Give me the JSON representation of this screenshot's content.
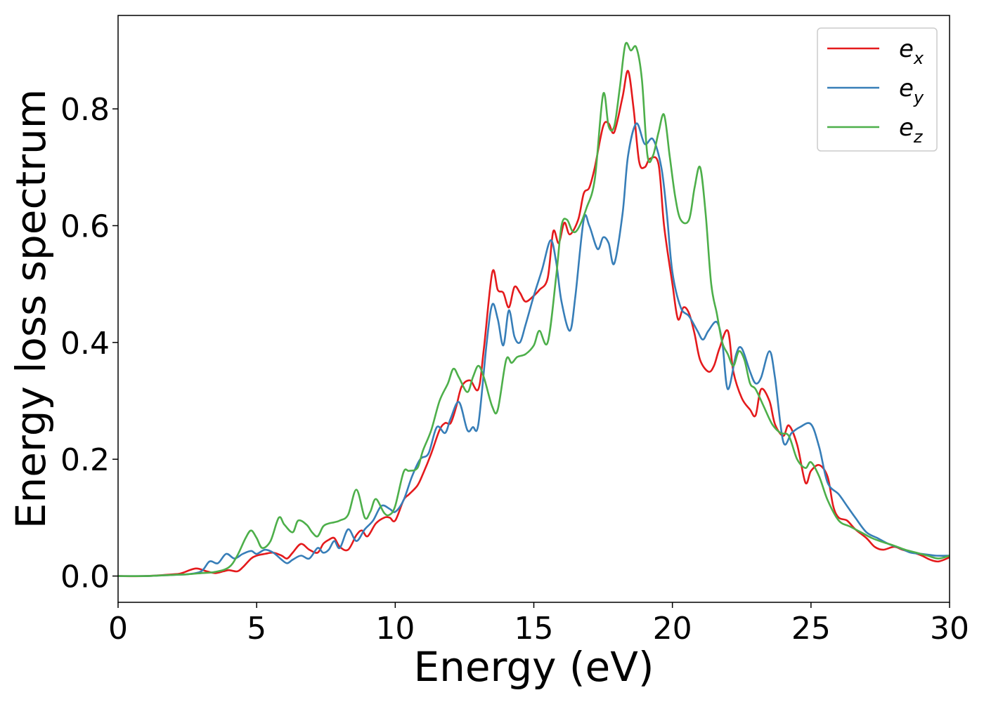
{
  "chart_data": {
    "type": "line",
    "title": "",
    "xlabel": "Energy (eV)",
    "ylabel": "Energy loss spectrum",
    "xlim": [
      0,
      30
    ],
    "ylim": [
      -0.045,
      0.96
    ],
    "xticks": [
      0,
      5,
      10,
      15,
      20,
      25,
      30
    ],
    "xtick_labels": [
      "0",
      "5",
      "10",
      "15",
      "20",
      "25",
      "30"
    ],
    "yticks": [
      0.0,
      0.2,
      0.4,
      0.6,
      0.8
    ],
    "ytick_labels": [
      "0.0",
      "0.2",
      "0.4",
      "0.6",
      "0.8"
    ],
    "grid": false,
    "legend_position": "top-right",
    "series": [
      {
        "name": "e",
        "subscript": "x",
        "color": "#e41a1c",
        "x": [
          0,
          1,
          2,
          2.3,
          2.8,
          3.2,
          3.5,
          3.8,
          4.0,
          4.3,
          4.5,
          4.8,
          5.0,
          5.3,
          5.6,
          5.9,
          6.1,
          6.3,
          6.6,
          6.9,
          7.2,
          7.4,
          7.6,
          7.8,
          8.0,
          8.3,
          8.6,
          8.8,
          9.0,
          9.3,
          9.6,
          9.8,
          10.0,
          10.3,
          10.5,
          10.8,
          11.0,
          11.3,
          11.6,
          11.8,
          12.0,
          12.2,
          12.4,
          12.7,
          13.0,
          13.2,
          13.5,
          13.7,
          13.9,
          14.1,
          14.3,
          14.5,
          14.7,
          15.0,
          15.2,
          15.5,
          15.7,
          15.9,
          16.1,
          16.3,
          16.6,
          16.8,
          17.0,
          17.2,
          17.5,
          17.7,
          17.9,
          18.2,
          18.4,
          18.6,
          18.8,
          19.0,
          19.2,
          19.5,
          19.7,
          20.0,
          20.2,
          20.4,
          20.6,
          20.8,
          21.0,
          21.3,
          21.5,
          21.7,
          22.0,
          22.2,
          22.5,
          22.8,
          23.0,
          23.2,
          23.5,
          23.7,
          24.0,
          24.2,
          24.5,
          24.8,
          25.0,
          25.3,
          25.6,
          25.8,
          26.0,
          26.3,
          26.6,
          27.0,
          27.3,
          27.6,
          28.0,
          28.3,
          28.7,
          29.0,
          29.3,
          29.6,
          30.0
        ],
        "y": [
          0,
          0,
          0.003,
          0.005,
          0.013,
          0.008,
          0.005,
          0.008,
          0.01,
          0.008,
          0.015,
          0.03,
          0.035,
          0.038,
          0.04,
          0.035,
          0.03,
          0.04,
          0.055,
          0.045,
          0.04,
          0.055,
          0.062,
          0.065,
          0.05,
          0.045,
          0.07,
          0.078,
          0.068,
          0.09,
          0.1,
          0.1,
          0.095,
          0.13,
          0.14,
          0.155,
          0.175,
          0.21,
          0.25,
          0.262,
          0.262,
          0.29,
          0.325,
          0.335,
          0.32,
          0.39,
          0.52,
          0.49,
          0.485,
          0.46,
          0.495,
          0.485,
          0.47,
          0.48,
          0.49,
          0.51,
          0.59,
          0.57,
          0.605,
          0.585,
          0.61,
          0.655,
          0.665,
          0.7,
          0.77,
          0.775,
          0.76,
          0.82,
          0.865,
          0.8,
          0.71,
          0.7,
          0.715,
          0.705,
          0.6,
          0.5,
          0.44,
          0.46,
          0.45,
          0.415,
          0.37,
          0.35,
          0.36,
          0.39,
          0.42,
          0.35,
          0.305,
          0.285,
          0.275,
          0.32,
          0.3,
          0.26,
          0.24,
          0.258,
          0.225,
          0.16,
          0.18,
          0.19,
          0.17,
          0.12,
          0.1,
          0.095,
          0.08,
          0.065,
          0.05,
          0.045,
          0.05,
          0.045,
          0.04,
          0.035,
          0.028,
          0.025,
          0.032
        ]
      },
      {
        "name": "e",
        "subscript": "y",
        "color": "#377eb8",
        "x": [
          0,
          1,
          2,
          2.5,
          3.0,
          3.3,
          3.6,
          3.9,
          4.2,
          4.5,
          4.8,
          5.0,
          5.3,
          5.6,
          5.9,
          6.1,
          6.3,
          6.6,
          6.9,
          7.2,
          7.4,
          7.6,
          7.8,
          8.0,
          8.3,
          8.6,
          8.9,
          9.2,
          9.5,
          9.8,
          10.0,
          10.3,
          10.6,
          10.9,
          11.2,
          11.5,
          11.8,
          12.0,
          12.3,
          12.6,
          12.8,
          13.0,
          13.3,
          13.5,
          13.7,
          13.9,
          14.1,
          14.3,
          14.5,
          14.7,
          15.0,
          15.3,
          15.6,
          15.8,
          16.0,
          16.3,
          16.5,
          16.8,
          17.0,
          17.3,
          17.5,
          17.7,
          17.9,
          18.2,
          18.4,
          18.7,
          19.0,
          19.3,
          19.6,
          19.8,
          20.0,
          20.3,
          20.6,
          20.9,
          21.1,
          21.3,
          21.6,
          21.8,
          22.0,
          22.3,
          22.5,
          22.8,
          23.0,
          23.2,
          23.5,
          23.7,
          24.0,
          24.3,
          24.6,
          25.0,
          25.3,
          25.6,
          26.0,
          26.3,
          26.6,
          27.0,
          27.4,
          27.8,
          28.2,
          28.6,
          29.0,
          29.5,
          30.0
        ],
        "y": [
          0,
          0,
          0.002,
          0.003,
          0.008,
          0.025,
          0.022,
          0.038,
          0.03,
          0.038,
          0.043,
          0.038,
          0.045,
          0.04,
          0.028,
          0.022,
          0.028,
          0.035,
          0.03,
          0.048,
          0.04,
          0.045,
          0.06,
          0.048,
          0.08,
          0.06,
          0.08,
          0.095,
          0.12,
          0.115,
          0.11,
          0.13,
          0.17,
          0.2,
          0.21,
          0.255,
          0.245,
          0.27,
          0.298,
          0.25,
          0.255,
          0.26,
          0.4,
          0.465,
          0.44,
          0.395,
          0.455,
          0.41,
          0.4,
          0.43,
          0.48,
          0.525,
          0.575,
          0.54,
          0.47,
          0.42,
          0.48,
          0.61,
          0.6,
          0.56,
          0.58,
          0.57,
          0.535,
          0.62,
          0.72,
          0.775,
          0.74,
          0.748,
          0.7,
          0.62,
          0.52,
          0.46,
          0.445,
          0.42,
          0.405,
          0.42,
          0.435,
          0.4,
          0.32,
          0.38,
          0.39,
          0.35,
          0.33,
          0.34,
          0.385,
          0.34,
          0.23,
          0.245,
          0.255,
          0.26,
          0.22,
          0.16,
          0.14,
          0.12,
          0.1,
          0.075,
          0.065,
          0.055,
          0.048,
          0.04,
          0.038,
          0.035,
          0.035
        ]
      },
      {
        "name": "e",
        "subscript": "z",
        "color": "#4daf4a",
        "x": [
          0,
          1,
          2,
          2.5,
          3.0,
          3.5,
          4.0,
          4.3,
          4.6,
          4.8,
          5.0,
          5.2,
          5.5,
          5.8,
          6.0,
          6.3,
          6.5,
          6.8,
          7.0,
          7.2,
          7.4,
          7.6,
          7.8,
          8.0,
          8.3,
          8.6,
          8.9,
          9.1,
          9.3,
          9.6,
          9.8,
          10.0,
          10.3,
          10.5,
          10.8,
          11.0,
          11.3,
          11.6,
          11.9,
          12.1,
          12.3,
          12.6,
          12.8,
          13.0,
          13.2,
          13.5,
          13.7,
          14.0,
          14.2,
          14.4,
          14.7,
          15.0,
          15.2,
          15.5,
          15.8,
          16.0,
          16.2,
          16.4,
          16.6,
          16.9,
          17.2,
          17.5,
          17.7,
          17.9,
          18.1,
          18.3,
          18.5,
          18.7,
          18.9,
          19.1,
          19.3,
          19.5,
          19.7,
          19.9,
          20.1,
          20.3,
          20.6,
          20.8,
          21.0,
          21.2,
          21.4,
          21.6,
          21.8,
          22.0,
          22.2,
          22.4,
          22.6,
          22.8,
          23.0,
          23.3,
          23.6,
          23.9,
          24.2,
          24.5,
          24.8,
          25.0,
          25.3,
          25.6,
          26.0,
          26.4,
          26.8,
          27.2,
          27.6,
          28.0,
          28.4,
          28.8,
          29.2,
          29.6,
          30.0
        ],
        "y": [
          0,
          0,
          0.002,
          0.003,
          0.005,
          0.007,
          0.015,
          0.035,
          0.065,
          0.078,
          0.065,
          0.048,
          0.06,
          0.1,
          0.088,
          0.075,
          0.095,
          0.088,
          0.075,
          0.068,
          0.085,
          0.09,
          0.092,
          0.095,
          0.105,
          0.148,
          0.1,
          0.11,
          0.132,
          0.108,
          0.105,
          0.12,
          0.178,
          0.18,
          0.185,
          0.215,
          0.25,
          0.3,
          0.33,
          0.355,
          0.34,
          0.315,
          0.34,
          0.36,
          0.34,
          0.29,
          0.285,
          0.37,
          0.365,
          0.375,
          0.38,
          0.395,
          0.42,
          0.4,
          0.51,
          0.6,
          0.61,
          0.59,
          0.595,
          0.63,
          0.68,
          0.825,
          0.77,
          0.77,
          0.835,
          0.91,
          0.9,
          0.905,
          0.85,
          0.72,
          0.72,
          0.76,
          0.79,
          0.72,
          0.65,
          0.61,
          0.61,
          0.665,
          0.7,
          0.62,
          0.5,
          0.45,
          0.4,
          0.38,
          0.36,
          0.385,
          0.37,
          0.33,
          0.32,
          0.29,
          0.26,
          0.245,
          0.24,
          0.2,
          0.185,
          0.195,
          0.17,
          0.13,
          0.095,
          0.085,
          0.075,
          0.065,
          0.058,
          0.052,
          0.045,
          0.04,
          0.035,
          0.03,
          0.035
        ]
      }
    ]
  }
}
